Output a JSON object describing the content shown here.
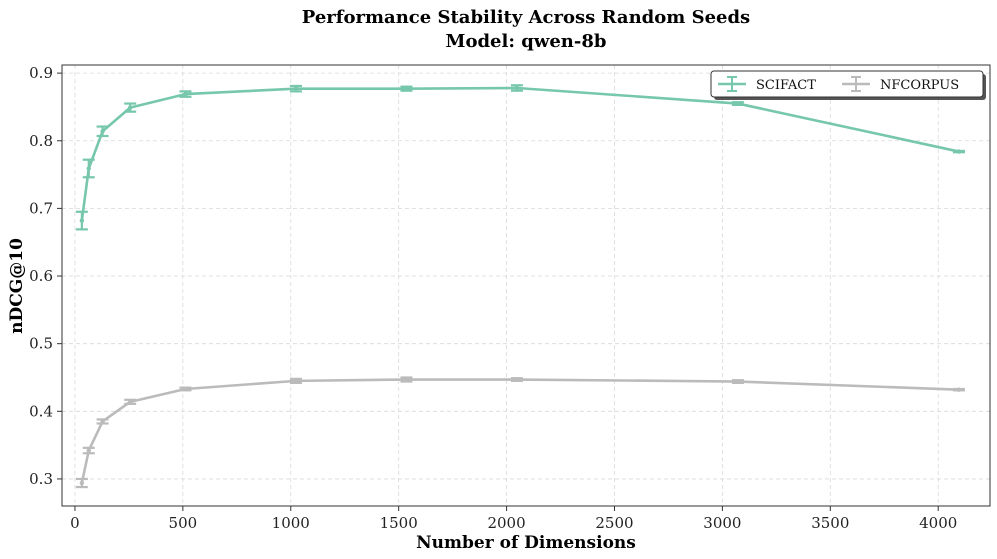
{
  "chart_data": {
    "type": "line",
    "title": "Performance Stability Across Random Seeds",
    "subtitle": "Model: qwen-8b",
    "xlabel": "Number of Dimensions",
    "ylabel": "nDCG@10",
    "xlim": [
      -60,
      4240
    ],
    "ylim": [
      0.26,
      0.912
    ],
    "xticks": [
      0,
      500,
      1000,
      1500,
      2000,
      2500,
      3000,
      3500,
      4000
    ],
    "yticks": [
      0.3,
      0.4,
      0.5,
      0.6,
      0.7,
      0.8,
      0.9
    ],
    "grid": true,
    "legend_position": "top-right",
    "series": [
      {
        "name": "SCIFACT",
        "color": "#76c7ac",
        "x": [
          32,
          64,
          128,
          256,
          512,
          1024,
          1536,
          2048,
          3072,
          4096
        ],
        "y": [
          0.682,
          0.759,
          0.814,
          0.849,
          0.869,
          0.877,
          0.877,
          0.878,
          0.855,
          0.784
        ],
        "err": [
          0.013,
          0.013,
          0.007,
          0.006,
          0.004,
          0.004,
          0.003,
          0.004,
          0.002,
          0.001
        ]
      },
      {
        "name": "NFCORPUS",
        "color": "#bbbbbb",
        "x": [
          32,
          64,
          128,
          256,
          512,
          1024,
          1536,
          2048,
          3072,
          4096
        ],
        "y": [
          0.294,
          0.342,
          0.385,
          0.414,
          0.433,
          0.445,
          0.447,
          0.447,
          0.444,
          0.432
        ],
        "err": [
          0.006,
          0.004,
          0.003,
          0.003,
          0.002,
          0.003,
          0.003,
          0.002,
          0.002,
          0.001
        ]
      }
    ]
  }
}
